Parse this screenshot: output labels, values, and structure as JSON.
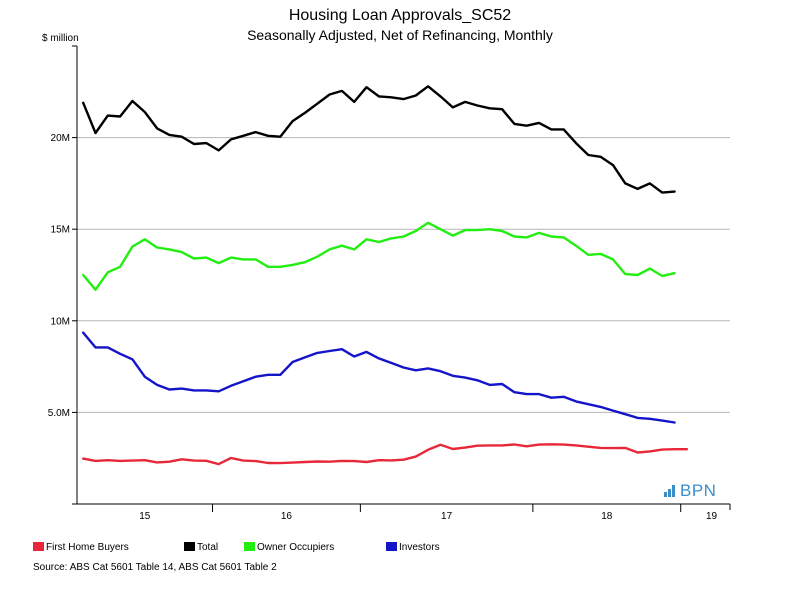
{
  "title": "Housing Loan Approvals_SC52",
  "subtitle": "Seasonally Adjusted, Net of Refinancing, Monthly",
  "source": "Source: ABS Cat 5601 Table 14, ABS Cat 5601 Table 2",
  "logo": {
    "text": "BPN",
    "icon": "bar-chart-icon",
    "color": "#3b8fc9"
  },
  "chart_data": {
    "type": "line",
    "title": "Housing Loan Approvals_SC52",
    "subtitle": "Seasonally Adjusted, Net of Refinancing, Monthly",
    "ylabel": "$ million",
    "xlabel": "",
    "ylim": [
      0,
      25000000
    ],
    "yticks": [
      {
        "value": 5000000,
        "label": "5.0M"
      },
      {
        "value": 10000000,
        "label": "10M"
      },
      {
        "value": 15000000,
        "label": "15M"
      },
      {
        "value": 20000000,
        "label": "20M"
      }
    ],
    "x_start": "2014-11",
    "x_axis": {
      "first_index": -0.5,
      "last_index": 52.5
    },
    "year_ticks": [
      {
        "label": "15",
        "center": 5
      },
      {
        "label": "16",
        "center": 16.5
      },
      {
        "label": "17",
        "center": 29.5
      },
      {
        "label": "18",
        "center": 42.5
      },
      {
        "label": "19",
        "center": 51
      }
    ],
    "year_boundaries": [
      10.5,
      22.5,
      36.5,
      48.5
    ],
    "grid": true,
    "legend_position": "bottom",
    "series": [
      {
        "name": "First Home Buyers",
        "color": "#e8283a",
        "values": [
          2480000,
          2350000,
          2390000,
          2350000,
          2370000,
          2390000,
          2270000,
          2310000,
          2440000,
          2370000,
          2360000,
          2180000,
          2510000,
          2370000,
          2340000,
          2240000,
          2230000,
          2260000,
          2290000,
          2320000,
          2310000,
          2350000,
          2340000,
          2290000,
          2390000,
          2380000,
          2420000,
          2590000,
          2960000,
          3230000,
          3000000,
          3080000,
          3180000,
          3200000,
          3200000,
          3250000,
          3150000,
          3240000,
          3260000,
          3240000,
          3200000,
          3130000,
          3060000,
          3050000,
          3060000,
          2810000,
          2870000,
          2970000,
          2990000,
          2990000
        ]
      },
      {
        "name": "Total",
        "color": "#000000",
        "values": [
          21900000,
          20250000,
          21200000,
          21150000,
          22000000,
          21400000,
          20500000,
          20150000,
          20050000,
          19650000,
          19700000,
          19300000,
          19900000,
          20100000,
          20300000,
          20100000,
          20050000,
          20900000,
          21350000,
          21850000,
          22350000,
          22550000,
          21950000,
          22750000,
          22250000,
          22200000,
          22100000,
          22300000,
          22800000,
          22250000,
          21650000,
          21950000,
          21750000,
          21600000,
          21550000,
          20750000,
          20650000,
          20800000,
          20450000,
          20450000,
          19700000,
          19050000,
          18950000,
          18500000,
          17500000,
          17200000,
          17500000,
          17000000,
          17050000
        ]
      },
      {
        "name": "Owner Occupiers",
        "color": "#22ee11",
        "values": [
          12500000,
          11700000,
          12650000,
          12950000,
          14050000,
          14450000,
          14000000,
          13900000,
          13750000,
          13400000,
          13450000,
          13150000,
          13450000,
          13350000,
          13350000,
          12950000,
          12950000,
          13050000,
          13200000,
          13500000,
          13900000,
          14100000,
          13900000,
          14450000,
          14300000,
          14500000,
          14600000,
          14900000,
          15350000,
          15000000,
          14650000,
          14950000,
          14950000,
          15000000,
          14900000,
          14600000,
          14550000,
          14800000,
          14600000,
          14550000,
          14100000,
          13600000,
          13650000,
          13350000,
          12550000,
          12500000,
          12850000,
          12450000,
          12600000
        ]
      },
      {
        "name": "Investors",
        "color": "#1414c8",
        "values": [
          9350000,
          8550000,
          8550000,
          8200000,
          7900000,
          6950000,
          6500000,
          6250000,
          6300000,
          6200000,
          6200000,
          6150000,
          6450000,
          6700000,
          6950000,
          7050000,
          7050000,
          7750000,
          8000000,
          8250000,
          8350000,
          8450000,
          8050000,
          8300000,
          7950000,
          7700000,
          7450000,
          7300000,
          7400000,
          7250000,
          7000000,
          6900000,
          6750000,
          6500000,
          6550000,
          6100000,
          6000000,
          6000000,
          5800000,
          5850000,
          5600000,
          5450000,
          5300000,
          5100000,
          4900000,
          4700000,
          4650000,
          4550000,
          4450000
        ]
      }
    ]
  }
}
